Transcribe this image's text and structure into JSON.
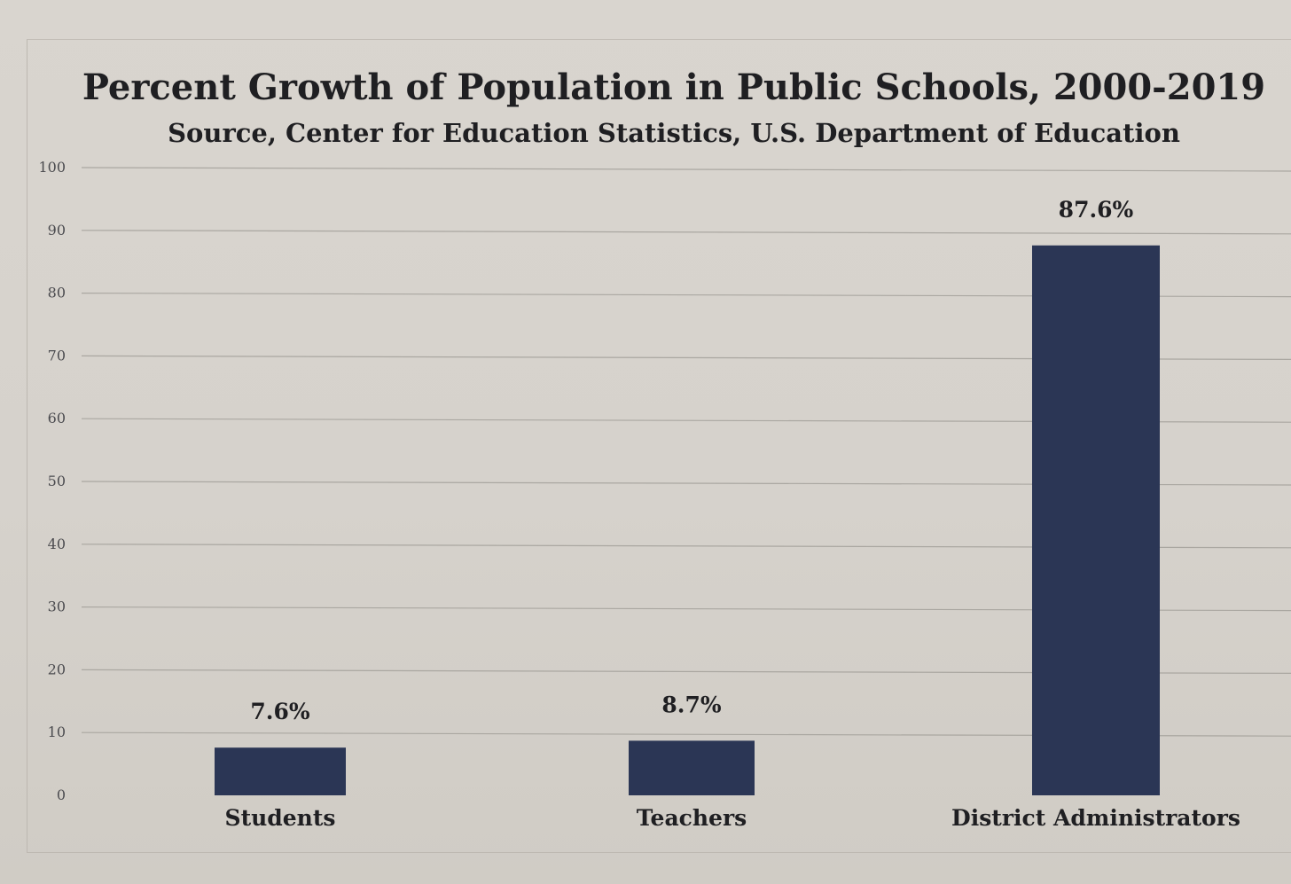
{
  "chart_data": {
    "type": "bar",
    "title": "Percent Growth of Population in Public Schools, 2000-2019",
    "subtitle": "Source, Center for Education Statistics, U.S. Department of Education",
    "categories": [
      "Students",
      "Teachers",
      "District Administrators"
    ],
    "values": [
      7.6,
      8.7,
      87.6
    ],
    "data_labels": [
      "7.6%",
      "8.7%",
      "87.6%"
    ],
    "yticks": [
      "0",
      "10",
      "20",
      "30",
      "40",
      "50",
      "60",
      "70",
      "80",
      "90",
      "100"
    ],
    "ylim": [
      0,
      100
    ],
    "grid": true,
    "colors": {
      "bar": "#2b3655",
      "grid": "#aaa7a1",
      "background": "#d8d4ce"
    }
  }
}
